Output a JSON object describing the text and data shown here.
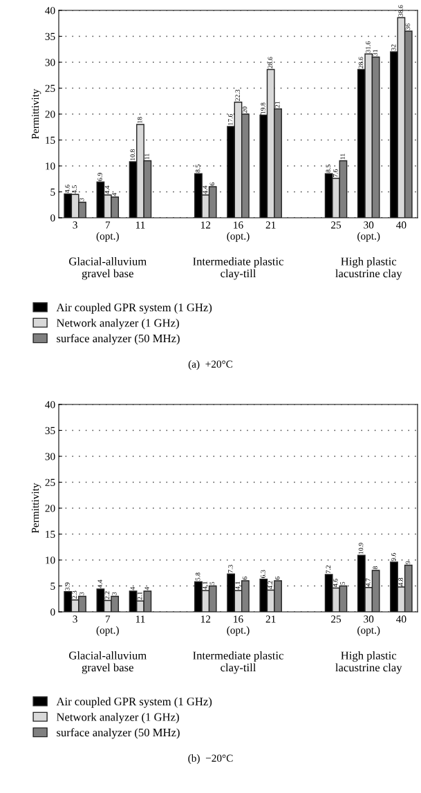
{
  "chart_data": [
    {
      "type": "bar",
      "title": "(a)  +20°C",
      "ylabel": "Permittivity",
      "categories": [
        "3",
        "7\n(opt.)",
        "11",
        null,
        "12",
        "16\n(opt.)",
        "21",
        null,
        "25",
        "30\n(opt.)",
        "40"
      ],
      "series": [
        {
          "name": "Air coupled GPR system (1 GHz)",
          "color": "#000000",
          "values": [
            4.6,
            6.9,
            10.8,
            null,
            8.5,
            17.6,
            19.8,
            null,
            8.5,
            28.6,
            32
          ]
        },
        {
          "name": "Network analyzer (1 GHz)",
          "color": "#d9d9d9",
          "values": [
            4.5,
            4.4,
            18,
            null,
            4.4,
            22.3,
            28.6,
            null,
            7.6,
            31.6,
            38.6
          ]
        },
        {
          "name": "surface analyzer (50 MHz)",
          "color": "#808080",
          "values": [
            3,
            4,
            11,
            null,
            6,
            20,
            21,
            null,
            11,
            31,
            36
          ]
        }
      ],
      "ylim": [
        0,
        40
      ],
      "yticks": [
        0,
        5,
        10,
        15,
        20,
        25,
        30,
        35,
        40
      ],
      "grid": "y",
      "legend": "bottom",
      "data_labels": true,
      "annotations": [
        "Glacial-alluvium\ngravel base",
        "Intermediate plastic\nclay-till",
        "High plastic\nlacustrine clay"
      ]
    },
    {
      "type": "bar",
      "title": "(b)  −20°C",
      "ylabel": "Permittivity",
      "categories": [
        "3",
        "7\n(opt.)",
        "11",
        null,
        "12",
        "16\n(opt.)",
        "21",
        null,
        "25",
        "30\n(opt.)",
        "40"
      ],
      "series": [
        {
          "name": "Air coupled GPR system (1 GHz)",
          "color": "#000000",
          "values": [
            3.9,
            4.4,
            4,
            null,
            5.8,
            7.3,
            6.3,
            null,
            7.2,
            10.9,
            9.6
          ]
        },
        {
          "name": "Network analyzer (1 GHz)",
          "color": "#d9d9d9",
          "values": [
            2.3,
            2.2,
            2.1,
            null,
            4.1,
            4.1,
            4.2,
            null,
            4.6,
            4.7,
            4.8
          ]
        },
        {
          "name": "surface analyzer (50 MHz)",
          "color": "#808080",
          "values": [
            3,
            3,
            4,
            null,
            5,
            6,
            6,
            null,
            5,
            8,
            9
          ]
        }
      ],
      "ylim": [
        0,
        40
      ],
      "yticks": [
        0,
        5,
        10,
        15,
        20,
        25,
        30,
        35,
        40
      ],
      "grid": "y",
      "legend": "bottom",
      "data_labels": true,
      "annotations": [
        "Glacial-alluvium\ngravel base",
        "Intermediate plastic\nclay-till",
        "High plastic\nlacustrine clay"
      ]
    }
  ]
}
